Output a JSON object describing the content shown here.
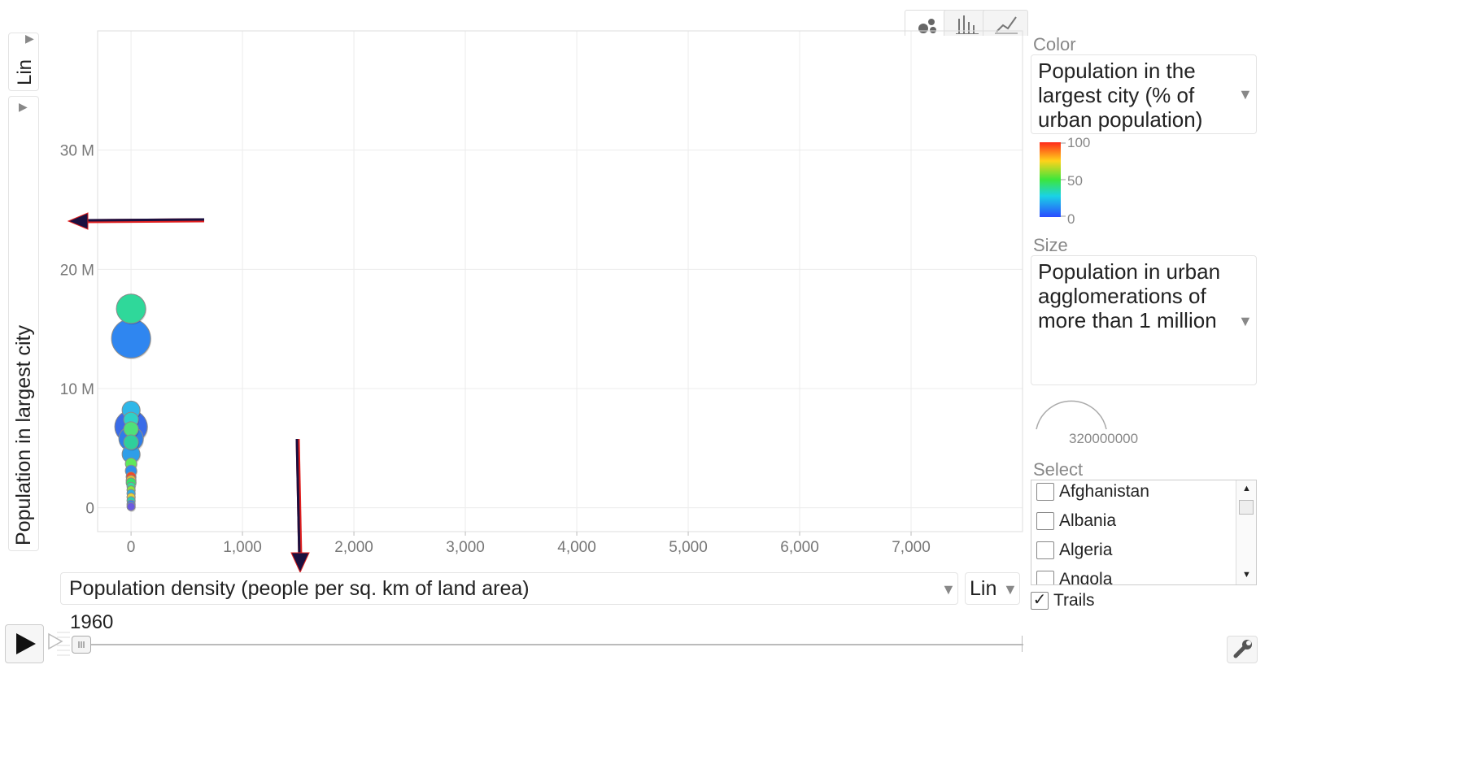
{
  "chart_data": {
    "type": "scatter",
    "title": "",
    "xlabel": "Population density (people per sq. km of land area)",
    "ylabel": "Population in largest city",
    "x_scale": "Lin",
    "y_scale": "Lin",
    "xlim": [
      -300,
      8000
    ],
    "ylim": [
      -2000000,
      40000000
    ],
    "x_ticks": [
      0,
      1000,
      2000,
      3000,
      4000,
      5000,
      6000,
      7000
    ],
    "x_tick_labels": [
      "0",
      "1,000",
      "2,000",
      "3,000",
      "4,000",
      "5,000",
      "6,000",
      "7,000"
    ],
    "y_ticks": [
      0,
      10000000,
      20000000,
      30000000
    ],
    "y_tick_labels": [
      "0",
      "10 M",
      "20 M",
      "30 M"
    ],
    "grid": true,
    "year": "1960",
    "points": [
      {
        "x": 0,
        "y": 16700000,
        "size": 18,
        "color": "#2fd89a"
      },
      {
        "x": 0,
        "y": 14200000,
        "size": 24,
        "color": "#2f86f0"
      },
      {
        "x": 0,
        "y": 8200000,
        "size": 11,
        "color": "#2fb7e8"
      },
      {
        "x": 0,
        "y": 7400000,
        "size": 9,
        "color": "#2fd0c8"
      },
      {
        "x": 0,
        "y": 6800000,
        "size": 20,
        "color": "#3a6ce8"
      },
      {
        "x": 0,
        "y": 6600000,
        "size": 9,
        "color": "#4fe07a"
      },
      {
        "x": 0,
        "y": 5800000,
        "size": 15,
        "color": "#2f7ee8"
      },
      {
        "x": 0,
        "y": 5500000,
        "size": 9,
        "color": "#2fcf9c"
      },
      {
        "x": 0,
        "y": 4500000,
        "size": 11,
        "color": "#2f9ee8"
      },
      {
        "x": 0,
        "y": 3700000,
        "size": 7,
        "color": "#5fe85a"
      },
      {
        "x": 0,
        "y": 3100000,
        "size": 7,
        "color": "#2f8ee8"
      },
      {
        "x": 0,
        "y": 2600000,
        "size": 6,
        "color": "#f04a2a"
      },
      {
        "x": 0,
        "y": 2300000,
        "size": 6,
        "color": "#f0c02a"
      },
      {
        "x": 0,
        "y": 2100000,
        "size": 6,
        "color": "#3adf6a"
      },
      {
        "x": 0,
        "y": 1800000,
        "size": 5,
        "color": "#2fe0a0"
      },
      {
        "x": 0,
        "y": 1500000,
        "size": 5,
        "color": "#8ae83a"
      },
      {
        "x": 0,
        "y": 1200000,
        "size": 5,
        "color": "#2fb0e8"
      },
      {
        "x": 0,
        "y": 900000,
        "size": 5,
        "color": "#e8d03a"
      },
      {
        "x": 0,
        "y": 600000,
        "size": 5,
        "color": "#2fd0b0"
      },
      {
        "x": 0,
        "y": 300000,
        "size": 5,
        "color": "#3a80e8"
      },
      {
        "x": 0,
        "y": 100000,
        "size": 5,
        "color": "#6a5ae0"
      }
    ]
  },
  "y_axis": {
    "scale_label": "Lin",
    "metric": "Population in largest city"
  },
  "x_axis": {
    "metric": "Population density (people per sq. km of land area)",
    "scale_label": "Lin"
  },
  "color_panel": {
    "heading": "Color",
    "metric": "Population in the largest city (% of urban population)",
    "legend_max": "100",
    "legend_mid": "50",
    "legend_min": "0"
  },
  "size_panel": {
    "heading": "Size",
    "metric": "Population in urban agglomerations of more than 1 million",
    "legend_value": "320000000"
  },
  "select_panel": {
    "heading": "Select",
    "items": [
      "Afghanistan",
      "Albania",
      "Algeria",
      "Angola"
    ],
    "trails_label": "Trails",
    "trails_checked": true
  },
  "timeline": {
    "year": "1960"
  },
  "icons": {
    "play": "play-icon",
    "speed": "speed-icon",
    "wrench": "wrench-icon",
    "bubble_tab": "bubble-chart-icon",
    "bar_tab": "bar-chart-icon",
    "line_tab": "line-chart-icon"
  },
  "colors": {
    "arrow": "#1a1040",
    "arrow_edge": "#e02020"
  }
}
